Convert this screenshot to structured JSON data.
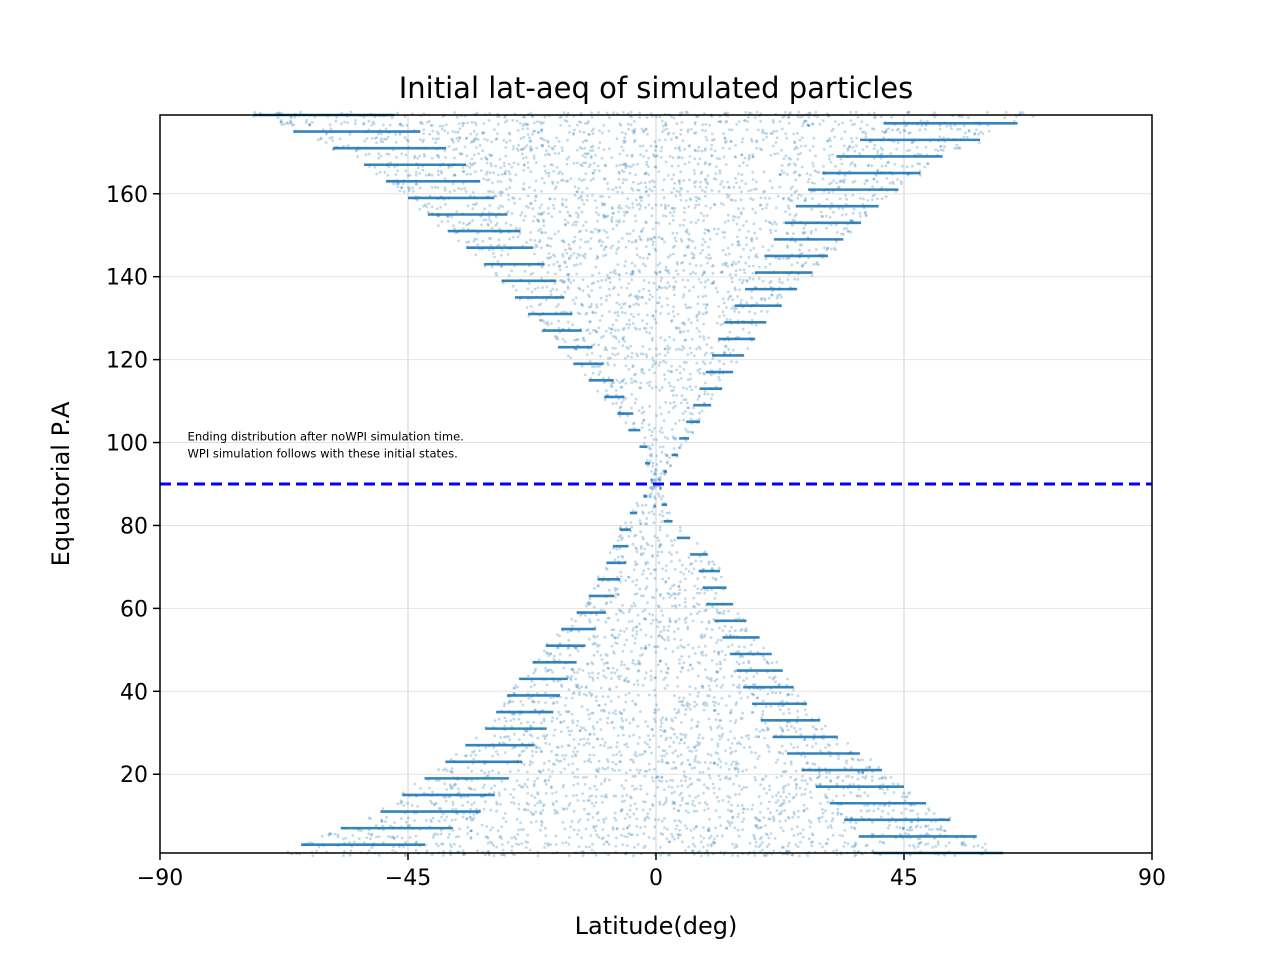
{
  "chart_data": {
    "type": "scatter",
    "title": "Initial lat-aeq of simulated particles",
    "xlabel": "Latitude(deg)",
    "ylabel": "Equatorial P.A",
    "xlim": [
      -90,
      90
    ],
    "ylim": [
      1,
      179
    ],
    "xticks": [
      -90,
      -45,
      0,
      45,
      90
    ],
    "xtick_labels": [
      "−90",
      "−45",
      "0",
      "45",
      "90"
    ],
    "yticks": [
      20,
      40,
      60,
      80,
      100,
      120,
      140,
      160
    ],
    "grid": true,
    "series": [
      {
        "color": "#1f77b4",
        "description_values": {
          "pitch_angle_start": 1,
          "pitch_angle_end": 179,
          "pitch_angle_step": 2,
          "latitude_envelope_below_90": [
            {
              "aeq": 1,
              "lat_min": -68,
              "lat_max": 63
            },
            {
              "aeq": 11,
              "lat_min": -50,
              "lat_max": 51
            },
            {
              "aeq": 21,
              "lat_min": -40,
              "lat_max": 41
            },
            {
              "aeq": 31,
              "lat_min": -31,
              "lat_max": 31
            },
            {
              "aeq": 41,
              "lat_min": -26,
              "lat_max": 25
            },
            {
              "aeq": 51,
              "lat_min": -20,
              "lat_max": 20
            },
            {
              "aeq": 61,
              "lat_min": -13,
              "lat_max": 14
            },
            {
              "aeq": 71,
              "lat_min": -9,
              "lat_max": 11
            },
            {
              "aeq": 81,
              "lat_min": -6,
              "lat_max": 3
            },
            {
              "aeq": 89,
              "lat_min": -1,
              "lat_max": 1
            }
          ],
          "latitude_envelope_above_90": [
            {
              "aeq": 91,
              "lat_min": -1,
              "lat_max": 1
            },
            {
              "aeq": 99,
              "lat_min": -3,
              "lat_max": 5
            },
            {
              "aeq": 109,
              "lat_min": -8,
              "lat_max": 10
            },
            {
              "aeq": 119,
              "lat_min": -15,
              "lat_max": 15
            },
            {
              "aeq": 129,
              "lat_min": -22,
              "lat_max": 20
            },
            {
              "aeq": 139,
              "lat_min": -28,
              "lat_max": 27
            },
            {
              "aeq": 149,
              "lat_min": -36,
              "lat_max": 34
            },
            {
              "aeq": 159,
              "lat_min": -45,
              "lat_max": 42
            },
            {
              "aeq": 169,
              "lat_min": -55,
              "lat_max": 52
            },
            {
              "aeq": 179,
              "lat_min": -73,
              "lat_max": 69
            }
          ]
        }
      }
    ],
    "hline": {
      "y": 90,
      "color": "#0000ff",
      "style": "dashed"
    },
    "annotation": {
      "line1": "Ending distribution after noWPI simulation time.",
      "line2": "WPI simulation follows with these initial states.",
      "x": -85,
      "y": 100.5
    }
  }
}
